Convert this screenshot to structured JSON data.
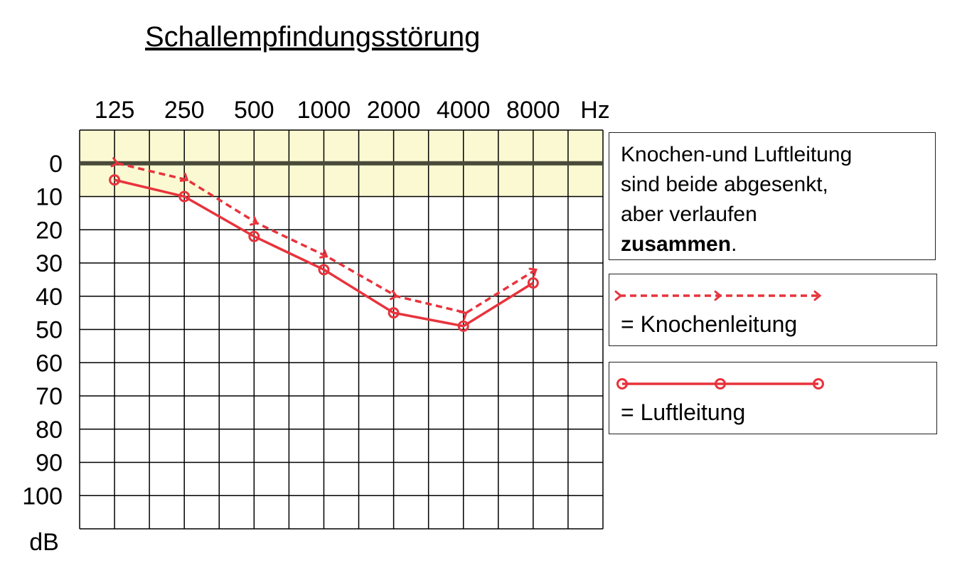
{
  "title": "Schallempfindungsstörung",
  "note": {
    "line1": "Knochen-und Luftleitung",
    "line2": "sind beide abgesenkt,",
    "line3": "aber verlaufen",
    "emph": "zusammen",
    "tail": "."
  },
  "legend": {
    "bone_label": "= Knochenleitung",
    "air_label": "= Luftleitung"
  },
  "colors": {
    "series": "#e8333c",
    "normal_band": "#fbf9d2",
    "zero_line": "#4a4a3a",
    "grid": "#000000"
  },
  "chart_data": {
    "type": "line",
    "title": "Schallempfindungsstörung",
    "x_categories": [
      "125",
      "250",
      "500",
      "1000",
      "2000",
      "4000",
      "8000"
    ],
    "x_unit": "Hz",
    "y_ticks": [
      "0",
      "10",
      "20",
      "30",
      "40",
      "50",
      "60",
      "70",
      "80",
      "90",
      "100"
    ],
    "y_unit": "dB",
    "ylim": [
      -10,
      110
    ],
    "y_inverted": true,
    "normal_range": [
      -10,
      10
    ],
    "grid": true,
    "legend_position": "right",
    "series": [
      {
        "name": "Knochenleitung",
        "style": "dashed-arrow",
        "x": [
          "125",
          "250",
          "500",
          "1000",
          "2000",
          "4000",
          "8000"
        ],
        "values": [
          0,
          5,
          18,
          28,
          40,
          45,
          32
        ]
      },
      {
        "name": "Luftleitung",
        "style": "solid-circle",
        "x": [
          "125",
          "250",
          "500",
          "1000",
          "2000",
          "4000",
          "8000"
        ],
        "values": [
          5,
          10,
          22,
          32,
          45,
          49,
          36
        ]
      }
    ]
  }
}
